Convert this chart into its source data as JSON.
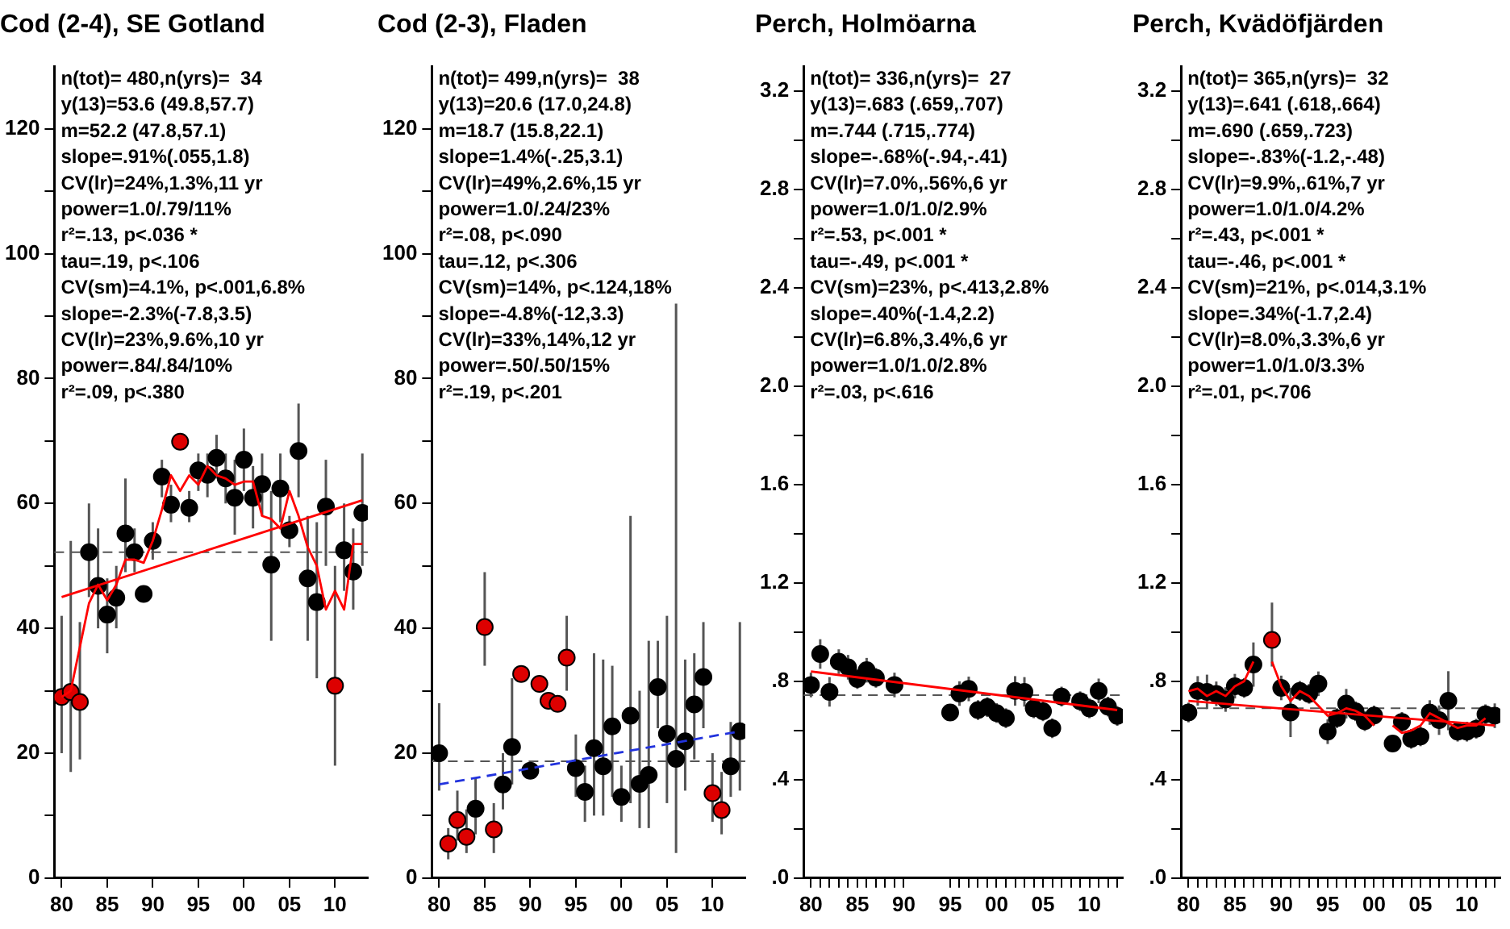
{
  "chart_data": [
    {
      "type": "scatter",
      "title": "Cod (2-4), SE Gotland",
      "xlim": [
        1979.2,
        2013.6
      ],
      "ylim": [
        0,
        130
      ],
      "xticks": [
        {
          "value": 1980,
          "label": "80"
        },
        {
          "value": 1985,
          "label": "85"
        },
        {
          "value": 1990,
          "label": "90"
        },
        {
          "value": 1995,
          "label": "95"
        },
        {
          "value": 2000,
          "label": "00"
        },
        {
          "value": 2005,
          "label": "05"
        },
        {
          "value": 2010,
          "label": "10"
        }
      ],
      "yticks": [
        0,
        {
          "value": 10,
          "label": null
        },
        20,
        {
          "value": 30,
          "label": null
        },
        40,
        {
          "value": 50,
          "label": null
        },
        60,
        {
          "value": 70,
          "label": null
        },
        80,
        {
          "value": 90,
          "label": null
        },
        100,
        {
          "value": 110,
          "label": null
        },
        120
      ],
      "annotations": [
        "n(tot)= 480,n(yrs)=  34",
        "y(13)=53.6 (49.8,57.7)",
        "m=52.2 (47.8,57.1)",
        "slope=.91%(.055,1.8)",
        "CV(lr)=24%,1.3%,11 yr",
        "power=1.0/.79/11%",
        "r²=.13, p<.036 *",
        "tau=.19, p<.106",
        "CV(sm)=4.1%, p<.001,6.8%",
        "slope=-2.3%(-7.8,3.5)",
        "CV(lr)=23%,9.6%,10 yr",
        "power=.84/.84/10%",
        "r²=.09, p<.380"
      ],
      "ref_lines": [
        {
          "axis": "y",
          "value": 52.2,
          "color": "#555555",
          "line_style": "dashed"
        }
      ],
      "legend": false,
      "grid": false,
      "series": [
        {
          "marker": "circle",
          "x": [
            1980,
            1981,
            1982,
            1983,
            1984,
            1985,
            1986,
            1987,
            1988,
            1989,
            1990,
            1991,
            1992,
            1993,
            1994,
            1995,
            1996,
            1997,
            1998,
            1999,
            2000,
            2001,
            2002,
            2003,
            2004,
            2005,
            2006,
            2007,
            2008,
            2009,
            2010,
            2011,
            2012,
            2013
          ],
          "values": [
            29.0,
            29.8,
            28.2,
            52.2,
            46.8,
            42.2,
            44.9,
            55.2,
            52.2,
            45.5,
            54.0,
            64.3,
            59.8,
            69.9,
            59.3,
            65.3,
            64.6,
            67.3,
            64.0,
            60.9,
            67.0,
            60.9,
            63.1,
            50.2,
            62.4,
            55.7,
            68.4,
            48.0,
            44.2,
            59.5,
            30.8,
            52.5,
            49.1,
            58.5
          ],
          "colors": [
            "#dd0000",
            "#dd0000",
            "#dd0000",
            "#000000",
            "#000000",
            "#000000",
            "#000000",
            "#000000",
            "#000000",
            "#000000",
            "#000000",
            "#000000",
            "#000000",
            "#dd0000",
            "#000000",
            "#000000",
            "#000000",
            "#000000",
            "#000000",
            "#000000",
            "#000000",
            "#000000",
            "#000000",
            "#000000",
            "#000000",
            "#000000",
            "#000000",
            "#000000",
            "#000000",
            "#000000",
            "#dd0000",
            "#000000",
            "#000000",
            "#000000"
          ],
          "errors": [
            [
              20,
              42
            ],
            [
              17,
              54
            ],
            [
              19,
              41
            ],
            [
              45,
              60
            ],
            [
              40,
              56
            ],
            [
              36,
              48
            ],
            [
              40,
              50
            ],
            [
              49,
              64
            ],
            [
              49,
              56
            ],
            null,
            [
              51,
              57
            ],
            [
              61,
              67
            ],
            [
              57,
              63
            ],
            null,
            [
              57,
              62
            ],
            [
              62,
              68
            ],
            [
              61,
              68
            ],
            [
              64,
              71
            ],
            [
              60,
              68
            ],
            [
              55,
              67
            ],
            [
              62,
              72
            ],
            [
              56,
              66
            ],
            [
              58,
              68
            ],
            [
              38,
              62
            ],
            [
              57,
              68
            ],
            [
              53,
              58
            ],
            [
              61,
              76
            ],
            [
              38,
              58
            ],
            [
              32,
              57
            ],
            [
              50,
              67
            ],
            [
              18,
              50
            ],
            [
              46,
              60
            ],
            [
              43,
              56
            ],
            [
              50,
              68
            ]
          ]
        },
        {
          "type": "line",
          "marker": "none",
          "line_style": "solid",
          "color": "#ff0000",
          "x": [
            1980,
            2013
          ],
          "values": [
            45,
            60.5
          ]
        },
        {
          "type": "line",
          "marker": "none",
          "line_style": "solid",
          "color": "#ff0000",
          "x": [
            1980,
            1981,
            1982,
            1983,
            1984,
            1985,
            1986,
            1987,
            1988,
            1989,
            1990,
            1991,
            1992,
            1993,
            1994,
            1995,
            1996,
            1997,
            1998,
            1999,
            2000,
            2001,
            2002,
            2003,
            2004,
            2005,
            2006,
            2007,
            2008,
            2009,
            2010,
            2011,
            2012,
            2013
          ],
          "values": [
            29,
            30,
            37,
            44,
            47,
            44.5,
            47,
            51,
            51,
            50.5,
            54,
            59,
            64.5,
            62,
            64.5,
            63,
            66,
            64.5,
            64,
            63,
            63.5,
            63.5,
            58,
            57.5,
            56,
            62,
            58,
            53,
            50,
            43,
            46,
            43,
            53.5,
            53.5
          ]
        }
      ]
    },
    {
      "type": "scatter",
      "title": "Cod (2-3), Fladen",
      "xlim": [
        1979.2,
        2013.6
      ],
      "ylim": [
        0,
        130
      ],
      "xticks": [
        {
          "value": 1980,
          "label": "80"
        },
        {
          "value": 1985,
          "label": "85"
        },
        {
          "value": 1990,
          "label": "90"
        },
        {
          "value": 1995,
          "label": "95"
        },
        {
          "value": 2000,
          "label": "00"
        },
        {
          "value": 2005,
          "label": "05"
        },
        {
          "value": 2010,
          "label": "10"
        }
      ],
      "yticks": [
        0,
        {
          "value": 10,
          "label": null
        },
        20,
        {
          "value": 30,
          "label": null
        },
        40,
        {
          "value": 50,
          "label": null
        },
        60,
        {
          "value": 70,
          "label": null
        },
        80,
        {
          "value": 90,
          "label": null
        },
        100,
        {
          "value": 110,
          "label": null
        },
        120
      ],
      "annotations": [
        "n(tot)= 499,n(yrs)=  38",
        "y(13)=20.6 (17.0,24.8)",
        "m=18.7 (15.8,22.1)",
        "slope=1.4%(-.25,3.1)",
        "CV(lr)=49%,2.6%,15 yr",
        "power=1.0/.24/23%",
        "r²=.08, p<.090",
        "tau=.12, p<.306",
        "CV(sm)=14%, p<.124,18%",
        "slope=-4.8%(-12,3.3)",
        "CV(lr)=33%,14%,12 yr",
        "power=.50/.50/15%",
        "r²=.19, p<.201"
      ],
      "ref_lines": [
        {
          "axis": "y",
          "value": 18.7,
          "color": "#555555",
          "line_style": "dashed"
        }
      ],
      "legend": false,
      "grid": false,
      "series": [
        {
          "marker": "circle",
          "x": [
            1980,
            1981,
            1982,
            1983,
            1984,
            1985,
            1986,
            1987,
            1988,
            1989,
            1990,
            1991,
            1992,
            1993,
            1994,
            1995,
            1996,
            1997,
            1998,
            1999,
            2000,
            2001,
            2002,
            2003,
            2004,
            2005,
            2006,
            2007,
            2008,
            2009,
            2010,
            2011,
            2012,
            2013
          ],
          "values": [
            20.0,
            5.5,
            9.3,
            6.6,
            11.1,
            40.2,
            7.8,
            15.0,
            21.0,
            32.7,
            17.2,
            31.1,
            28.4,
            27.9,
            35.3,
            17.6,
            13.8,
            20.8,
            17.9,
            24.3,
            13.0,
            26.0,
            15.1,
            16.5,
            30.6,
            23.1,
            19.1,
            21.9,
            27.8,
            32.2,
            13.6,
            10.9,
            17.9,
            23.5
          ],
          "colors": [
            "#000000",
            "#dd0000",
            "#dd0000",
            "#dd0000",
            "#000000",
            "#dd0000",
            "#dd0000",
            "#000000",
            "#000000",
            "#dd0000",
            "#000000",
            "#dd0000",
            "#dd0000",
            "#dd0000",
            "#dd0000",
            "#000000",
            "#000000",
            "#000000",
            "#000000",
            "#000000",
            "#000000",
            "#000000",
            "#000000",
            "#000000",
            "#000000",
            "#000000",
            "#000000",
            "#000000",
            "#000000",
            "#000000",
            "#dd0000",
            "#dd0000",
            "#000000",
            "#000000"
          ],
          "errors": [
            [
              14,
              28
            ],
            [
              3,
              8
            ],
            [
              6,
              14
            ],
            [
              4,
              11
            ],
            [
              7,
              16
            ],
            [
              34,
              49
            ],
            [
              4,
              12
            ],
            [
              11,
              20
            ],
            [
              15,
              32
            ],
            null,
            null,
            null,
            null,
            null,
            [
              30,
              42
            ],
            [
              13,
              23
            ],
            [
              9,
              18
            ],
            [
              10,
              36
            ],
            [
              10,
              35
            ],
            [
              13,
              34
            ],
            [
              9,
              18
            ],
            [
              12,
              58
            ],
            [
              8,
              30
            ],
            [
              8,
              38
            ],
            [
              24,
              38
            ],
            [
              12,
              42
            ],
            [
              4,
              92
            ],
            [
              14,
              35
            ],
            [
              19,
              36
            ],
            [
              24,
              41
            ],
            [
              9,
              20
            ],
            [
              7,
              17
            ],
            [
              13,
              25
            ],
            [
              14,
              41
            ]
          ]
        },
        {
          "type": "line",
          "marker": "none",
          "line_style": "dashed",
          "color": "#2233dd",
          "x": [
            1980,
            2013
          ],
          "values": [
            15,
            23.5
          ]
        }
      ]
    },
    {
      "type": "scatter",
      "title": "Perch, Holmöarna",
      "xlim": [
        1979.2,
        2013.6
      ],
      "ylim": [
        0,
        3.3
      ],
      "xticks": [
        {
          "value": 1980,
          "label": "80"
        },
        {
          "value": 1981,
          "label": null
        },
        {
          "value": 1982,
          "label": null
        },
        {
          "value": 1983,
          "label": null
        },
        {
          "value": 1984,
          "label": null
        },
        {
          "value": 1985,
          "label": "85"
        },
        {
          "value": 1986,
          "label": null
        },
        {
          "value": 1987,
          "label": null
        },
        {
          "value": 1988,
          "label": null
        },
        {
          "value": 1989,
          "label": null
        },
        {
          "value": 1990,
          "label": "90"
        },
        {
          "value": 1995,
          "label": "95"
        },
        {
          "value": 1996,
          "label": null
        },
        {
          "value": 1997,
          "label": null
        },
        {
          "value": 1998,
          "label": null
        },
        {
          "value": 1999,
          "label": null
        },
        {
          "value": 2000,
          "label": "00"
        },
        {
          "value": 2001,
          "label": null
        },
        {
          "value": 2002,
          "label": null
        },
        {
          "value": 2003,
          "label": null
        },
        {
          "value": 2004,
          "label": null
        },
        {
          "value": 2005,
          "label": "05"
        },
        {
          "value": 2006,
          "label": null
        },
        {
          "value": 2007,
          "label": null
        },
        {
          "value": 2008,
          "label": null
        },
        {
          "value": 2009,
          "label": null
        },
        {
          "value": 2010,
          "label": "10"
        },
        {
          "value": 2011,
          "label": null
        },
        {
          "value": 2012,
          "label": null
        },
        {
          "value": 2013,
          "label": null
        }
      ],
      "yticks": [
        {
          "value": 0,
          "label": ".0"
        },
        {
          "value": 0.2,
          "label": null
        },
        {
          "value": 0.4,
          "label": ".4"
        },
        {
          "value": 0.6,
          "label": null
        },
        {
          "value": 0.8,
          "label": ".8"
        },
        {
          "value": 1.0,
          "label": null
        },
        1.2,
        {
          "value": 1.4,
          "label": null
        },
        1.6,
        {
          "value": 1.8,
          "label": null
        },
        {
          "value": 2.0,
          "label": "2.0"
        },
        {
          "value": 2.2,
          "label": null
        },
        2.4,
        {
          "value": 2.6,
          "label": null
        },
        2.8,
        {
          "value": 3.0,
          "label": null
        },
        3.2
      ],
      "annotations": [
        "n(tot)= 336,n(yrs)=  27",
        "y(13)=.683 (.659,.707)",
        "m=.744 (.715,.774)",
        "slope=-.68%(-.94,-.41)",
        "CV(lr)=7.0%,.56%,6 yr",
        "power=1.0/1.0/2.9%",
        "r²=.53, p<.001 *",
        "tau=-.49, p<.001 *",
        "CV(sm)=23%, p<.413,2.8%",
        "slope=.40%(-1.4,2.2)",
        "CV(lr)=6.8%,3.4%,6 yr",
        "power=1.0/1.0/2.8%",
        "r²=.03, p<.616"
      ],
      "ref_lines": [
        {
          "axis": "y",
          "value": 0.744,
          "color": "#555555",
          "line_style": "dashed"
        }
      ],
      "legend": false,
      "grid": false,
      "series": [
        {
          "marker": "circle",
          "color": "#000000",
          "x": [
            1980,
            1981,
            1982,
            1983,
            1984,
            1985,
            1986,
            1987,
            1989,
            1995,
            1996,
            1997,
            1998,
            1999,
            2000,
            2001,
            2002,
            2003,
            2004,
            2005,
            2006,
            2007,
            2009,
            2010,
            2011,
            2012,
            2013
          ],
          "values": [
            0.785,
            0.911,
            0.757,
            0.88,
            0.857,
            0.809,
            0.845,
            0.814,
            0.785,
            0.673,
            0.75,
            0.769,
            0.683,
            0.695,
            0.671,
            0.65,
            0.761,
            0.757,
            0.69,
            0.678,
            0.609,
            0.738,
            0.719,
            0.69,
            0.761,
            0.697,
            0.659
          ],
          "errors": [
            0.05,
            0.06,
            0.06,
            0.05,
            0.05,
            0.04,
            0.05,
            0.04,
            0.05,
            0.03,
            0.05,
            0.05,
            0.04,
            0.04,
            0.04,
            0.04,
            0.06,
            0.06,
            0.04,
            0.04,
            0.04,
            0.04,
            0.04,
            0.04,
            0.05,
            0.04,
            0.04
          ]
        },
        {
          "type": "line",
          "marker": "none",
          "line_style": "solid",
          "color": "#ff0000",
          "x": [
            1980,
            2013
          ],
          "values": [
            0.84,
            0.683
          ]
        }
      ]
    },
    {
      "type": "scatter",
      "title": "Perch, Kvädöfjärden",
      "xlim": [
        1979.2,
        2013.6
      ],
      "ylim": [
        0,
        3.3
      ],
      "xticks": [
        {
          "value": 1980,
          "label": "80"
        },
        {
          "value": 1981,
          "label": null
        },
        {
          "value": 1982,
          "label": null
        },
        {
          "value": 1983,
          "label": null
        },
        {
          "value": 1984,
          "label": null
        },
        {
          "value": 1985,
          "label": "85"
        },
        {
          "value": 1986,
          "label": null
        },
        {
          "value": 1987,
          "label": null
        },
        {
          "value": 1988,
          "label": null
        },
        {
          "value": 1989,
          "label": null
        },
        {
          "value": 1990,
          "label": "90"
        },
        {
          "value": 1991,
          "label": null
        },
        {
          "value": 1992,
          "label": null
        },
        {
          "value": 1993,
          "label": null
        },
        {
          "value": 1994,
          "label": null
        },
        {
          "value": 1995,
          "label": "95"
        },
        {
          "value": 1996,
          "label": null
        },
        {
          "value": 1997,
          "label": null
        },
        {
          "value": 1998,
          "label": null
        },
        {
          "value": 1999,
          "label": null
        },
        {
          "value": 2000,
          "label": "00"
        },
        {
          "value": 2001,
          "label": null
        },
        {
          "value": 2002,
          "label": null
        },
        {
          "value": 2003,
          "label": null
        },
        {
          "value": 2004,
          "label": null
        },
        {
          "value": 2005,
          "label": "05"
        },
        {
          "value": 2006,
          "label": null
        },
        {
          "value": 2007,
          "label": null
        },
        {
          "value": 2008,
          "label": null
        },
        {
          "value": 2009,
          "label": null
        },
        {
          "value": 2010,
          "label": "10"
        },
        {
          "value": 2011,
          "label": null
        },
        {
          "value": 2012,
          "label": null
        },
        {
          "value": 2013,
          "label": null
        }
      ],
      "yticks": [
        {
          "value": 0,
          "label": ".0"
        },
        {
          "value": 0.2,
          "label": null
        },
        {
          "value": 0.4,
          "label": ".4"
        },
        {
          "value": 0.6,
          "label": null
        },
        {
          "value": 0.8,
          "label": ".8"
        },
        {
          "value": 1.0,
          "label": null
        },
        1.2,
        {
          "value": 1.4,
          "label": null
        },
        1.6,
        {
          "value": 1.8,
          "label": null
        },
        {
          "value": 2.0,
          "label": "2.0"
        },
        {
          "value": 2.2,
          "label": null
        },
        2.4,
        {
          "value": 2.6,
          "label": null
        },
        2.8,
        {
          "value": 3.0,
          "label": null
        },
        3.2
      ],
      "annotations": [
        "n(tot)= 365,n(yrs)=  32",
        "y(13)=.641 (.618,.664)",
        "m=.690 (.659,.723)",
        "slope=-.83%(-1.2,-.48)",
        "CV(lr)=9.9%,.61%,7 yr",
        "power=1.0/1.0/4.2%",
        "r²=.43, p<.001 *",
        "tau=-.46, p<.001 *",
        "CV(sm)=21%, p<.014,3.1%",
        "slope=.34%(-1.7,2.4)",
        "CV(lr)=8.0%,3.3%,6 yr",
        "power=1.0/1.0/3.3%",
        "r²=.01, p<.706"
      ],
      "ref_lines": [
        {
          "axis": "y",
          "value": 0.69,
          "color": "#555555",
          "line_style": "dashed"
        }
      ],
      "legend": false,
      "grid": false,
      "series": [
        {
          "marker": "circle",
          "x": [
            1980,
            1981,
            1982,
            1983,
            1984,
            1985,
            1986,
            1987,
            1989,
            1990,
            1991,
            1992,
            1993,
            1994,
            1995,
            1996,
            1997,
            1998,
            1999,
            2000,
            2002,
            2003,
            2004,
            2005,
            2006,
            2007,
            2008,
            2009,
            2010,
            2011,
            2012,
            2013
          ],
          "values": [
            0.673,
            0.761,
            0.757,
            0.749,
            0.726,
            0.78,
            0.773,
            0.868,
            0.968,
            0.773,
            0.673,
            0.761,
            0.749,
            0.79,
            0.595,
            0.65,
            0.709,
            0.678,
            0.638,
            0.661,
            0.547,
            0.635,
            0.566,
            0.576,
            0.673,
            0.642,
            0.721,
            0.595,
            0.595,
            0.607,
            0.666,
            0.66
          ],
          "colors": [
            "#000000",
            "#000000",
            "#000000",
            "#000000",
            "#000000",
            "#000000",
            "#000000",
            "#000000",
            "#dd0000",
            "#000000",
            "#000000",
            "#000000",
            "#000000",
            "#000000",
            "#000000",
            "#000000",
            "#000000",
            "#000000",
            "#000000",
            "#000000",
            "#000000",
            "#000000",
            "#000000",
            "#000000",
            "#000000",
            "#000000",
            "#000000",
            "#000000",
            "#000000",
            "#000000",
            "#000000",
            "#000000"
          ],
          "errors": [
            0.04,
            0.06,
            0.07,
            0.05,
            0.05,
            0.05,
            0.04,
            0.09,
            [
              0.86,
              1.12
            ],
            0.05,
            0.1,
            0.04,
            0.04,
            0.05,
            0.05,
            0.04,
            0.06,
            0.04,
            0.04,
            0.04,
            0.03,
            0.04,
            0.04,
            0.04,
            0.05,
            0.06,
            0.12,
            0.04,
            0.04,
            0.04,
            0.04,
            0.05
          ]
        },
        {
          "type": "line",
          "marker": "none",
          "line_style": "solid",
          "color": "#ff0000",
          "x": [
            1980,
            2013
          ],
          "values": [
            0.72,
            0.62
          ]
        },
        {
          "type": "line",
          "marker": "none",
          "line_style": "solid",
          "color": "#ff0000",
          "x": [
            1980,
            1981,
            1982,
            1983,
            1984,
            1985,
            1986,
            1987,
            1988,
            1989,
            1990,
            1991,
            1992,
            1993,
            1994,
            1995,
            1996,
            1997,
            1998,
            1999,
            2000,
            2001,
            2002,
            2003,
            2004,
            2005,
            2006,
            2007,
            2008,
            2009,
            2010,
            2011,
            2012
          ],
          "values": [
            0.76,
            0.77,
            0.74,
            0.76,
            0.74,
            0.78,
            0.8,
            0.88,
            null,
            0.88,
            0.78,
            0.72,
            0.76,
            0.74,
            0.7,
            0.66,
            0.67,
            0.69,
            0.68,
            0.66,
            0.62,
            null,
            0.62,
            0.59,
            0.6,
            0.62,
            0.67,
            0.65,
            0.63,
            0.61,
            0.62,
            0.62,
            0.65
          ]
        }
      ]
    }
  ]
}
